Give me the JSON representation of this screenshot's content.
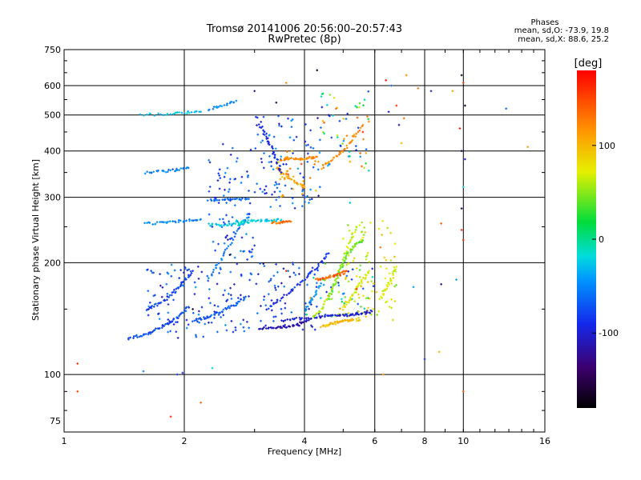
{
  "title": "Tromsø 20141006 20:56:00–20:57:43",
  "subtitle": "RwPretec (8p)",
  "phase_stats": {
    "heading": "Phases",
    "line1": "mean, sd,O: -73.9, 19.8",
    "line2": "mean, sd,X:  88.6, 25.2"
  },
  "colorbar": {
    "unit": "[deg]",
    "range": [
      -180,
      180
    ],
    "ticks": [
      100,
      0,
      -100
    ]
  },
  "chart_data": {
    "type": "scatter",
    "title": "Tromsø 20141006 20:56:00–20:57:43",
    "subtitle": "RwPretec (8p)",
    "xlabel": "Frequency [MHz]",
    "ylabel": "Stationary phase Virtual Height [km]",
    "x_scale": "log",
    "y_scale": "log",
    "xlim": [
      1,
      16
    ],
    "ylim": [
      70,
      750
    ],
    "x_ticks": [
      1,
      2,
      4,
      6,
      8,
      10,
      16
    ],
    "y_ticks": [
      75,
      100,
      200,
      300,
      400,
      500,
      600,
      750
    ],
    "grid": true,
    "color_variable": "phase [deg]",
    "traces": [
      {
        "f": [
          1.45,
          1.55,
          1.65,
          1.75,
          1.85,
          1.95,
          2.05
        ],
        "h": [
          125,
          127,
          130,
          134,
          138,
          144,
          152
        ],
        "phase": -75
      },
      {
        "f": [
          1.6,
          1.7,
          1.8,
          1.9,
          2.0,
          2.1
        ],
        "h": [
          150,
          154,
          160,
          168,
          178,
          190
        ],
        "phase": -85
      },
      {
        "f": [
          2.1,
          2.25,
          2.4,
          2.55,
          2.7,
          2.85
        ],
        "h": [
          140,
          142,
          146,
          150,
          155,
          162
        ],
        "phase": -70
      },
      {
        "f": [
          2.3,
          2.45,
          2.6,
          2.75,
          2.9
        ],
        "h": [
          180,
          200,
          225,
          250,
          265
        ],
        "phase": -60
      },
      {
        "f": [
          3.1,
          3.3,
          3.5,
          3.7,
          3.9,
          4.1
        ],
        "h": [
          133,
          133,
          134,
          135,
          137,
          140
        ],
        "phase": -110
      },
      {
        "f": [
          3.2,
          3.5,
          3.8,
          4.1,
          4.4,
          4.6
        ],
        "h": [
          150,
          160,
          172,
          185,
          200,
          212
        ],
        "phase": -85
      },
      {
        "f": [
          3.5,
          3.8,
          4.1,
          4.4,
          4.7,
          5.0,
          5.3,
          5.6,
          5.9
        ],
        "h": [
          140,
          141,
          142,
          143,
          144,
          144,
          145,
          146,
          148
        ],
        "phase": -100
      },
      {
        "f": [
          4.2,
          4.4,
          4.6,
          4.8,
          5.0,
          5.2,
          5.4
        ],
        "h": [
          142,
          150,
          162,
          180,
          205,
          230,
          250
        ],
        "phase": 60
      },
      {
        "f": [
          4.4,
          4.6,
          4.8,
          5.0,
          5.2,
          5.5
        ],
        "h": [
          135,
          136,
          138,
          139,
          140,
          140
        ],
        "phase": 95
      },
      {
        "f": [
          3.4,
          3.6,
          3.8,
          4.0
        ],
        "h": [
          360,
          345,
          330,
          320
        ],
        "phase": 110
      },
      {
        "f": [
          3.5,
          3.7,
          3.9,
          4.1,
          4.3
        ],
        "h": [
          380,
          380,
          381,
          383,
          386
        ],
        "phase": 120
      },
      {
        "f": [
          4.4,
          4.7,
          5.0,
          5.3,
          5.6
        ],
        "h": [
          360,
          380,
          400,
          430,
          470
        ],
        "phase": 120
      },
      {
        "f": [
          2.3,
          2.5,
          2.7,
          2.9
        ],
        "h": [
          253,
          253,
          254,
          256
        ],
        "phase": -20
      },
      {
        "f": [
          2.3,
          2.5,
          2.7,
          2.9
        ],
        "h": [
          294,
          295,
          296,
          297
        ],
        "phase": -60
      },
      {
        "f": [
          2.7,
          2.9,
          3.1,
          3.3,
          3.5
        ],
        "h": [
          258,
          259,
          260,
          260,
          261
        ],
        "phase": -20
      },
      {
        "f": [
          3.3,
          3.5,
          3.7
        ],
        "h": [
          256,
          257,
          258
        ],
        "phase": 130
      },
      {
        "f": [
          1.6,
          1.75,
          1.9,
          2.05,
          2.2
        ],
        "h": [
          255,
          256,
          258,
          260,
          262
        ],
        "phase": -50
      },
      {
        "f": [
          1.6,
          1.75,
          1.9,
          2.05
        ],
        "h": [
          350,
          352,
          356,
          360
        ],
        "phase": -55
      },
      {
        "f": [
          1.55,
          1.8,
          2.0,
          2.2
        ],
        "h": [
          500,
          503,
          507,
          510
        ],
        "phase": -30
      },
      {
        "f": [
          2.3,
          2.5,
          2.7
        ],
        "h": [
          518,
          530,
          546
        ],
        "phase": -50
      },
      {
        "f": [
          3.1,
          3.2,
          3.3,
          3.4,
          3.5
        ],
        "h": [
          470,
          440,
          410,
          380,
          350
        ],
        "phase": -90
      },
      {
        "f": [
          4.6,
          4.8,
          5.0,
          5.2,
          5.4,
          5.6
        ],
        "h": [
          160,
          180,
          200,
          215,
          225,
          230
        ],
        "phase": 40
      },
      {
        "f": [
          5.0,
          5.2,
          5.4,
          5.6,
          5.8
        ],
        "h": [
          150,
          160,
          170,
          180,
          190
        ],
        "phase": 75
      },
      {
        "f": [
          6.2,
          6.4,
          6.6,
          6.8
        ],
        "h": [
          160,
          170,
          180,
          195
        ],
        "phase": 70
      },
      {
        "f": [
          4.3,
          4.5,
          4.7,
          4.9,
          5.1
        ],
        "h": [
          180,
          182,
          184,
          186,
          190
        ],
        "phase": 140
      },
      {
        "f": [
          4.0,
          4.2,
          4.4
        ],
        "h": [
          148,
          160,
          176
        ],
        "phase": -45
      }
    ],
    "scatter": [
      {
        "f": 1.08,
        "h": 107,
        "phase": 160
      },
      {
        "f": 1.08,
        "h": 90,
        "phase": 150
      },
      {
        "f": 1.85,
        "h": 77,
        "phase": 160
      },
      {
        "f": 1.92,
        "h": 100,
        "phase": -80
      },
      {
        "f": 1.98,
        "h": 101,
        "phase": -80
      },
      {
        "f": 2.35,
        "h": 104,
        "phase": -20
      },
      {
        "f": 2.2,
        "h": 84,
        "phase": 140
      },
      {
        "f": 1.58,
        "h": 102,
        "phase": -50
      },
      {
        "f": 2.1,
        "h": 150,
        "phase": -160
      },
      {
        "f": 2.6,
        "h": 210,
        "phase": -160
      },
      {
        "f": 3.6,
        "h": 190,
        "phase": 160
      },
      {
        "f": 5.4,
        "h": 170,
        "phase": 160
      },
      {
        "f": 5.2,
        "h": 290,
        "phase": -30
      },
      {
        "f": 4.6,
        "h": 500,
        "phase": -120
      },
      {
        "f": 4.8,
        "h": 520,
        "phase": 140
      },
      {
        "f": 5.6,
        "h": 450,
        "phase": 160
      },
      {
        "f": 5.8,
        "h": 480,
        "phase": 120
      },
      {
        "f": 4.3,
        "h": 660,
        "phase": -160
      },
      {
        "f": 3.6,
        "h": 610,
        "phase": 120
      },
      {
        "f": 3.4,
        "h": 540,
        "phase": -150
      },
      {
        "f": 3.0,
        "h": 580,
        "phase": -120
      },
      {
        "f": 6.4,
        "h": 620,
        "phase": 170
      },
      {
        "f": 6.5,
        "h": 510,
        "phase": -100
      },
      {
        "f": 6.6,
        "h": 600,
        "phase": -60
      },
      {
        "f": 6.8,
        "h": 530,
        "phase": 160
      },
      {
        "f": 6.9,
        "h": 470,
        "phase": -110
      },
      {
        "f": 7.0,
        "h": 420,
        "phase": 100
      },
      {
        "f": 7.1,
        "h": 490,
        "phase": 130
      },
      {
        "f": 7.2,
        "h": 640,
        "phase": 120
      },
      {
        "f": 7.7,
        "h": 590,
        "phase": 130
      },
      {
        "f": 8.3,
        "h": 580,
        "phase": -100
      },
      {
        "f": 9.4,
        "h": 580,
        "phase": 110
      },
      {
        "f": 9.9,
        "h": 640,
        "phase": -160
      },
      {
        "f": 10.0,
        "h": 610,
        "phase": 150
      },
      {
        "f": 9.8,
        "h": 460,
        "phase": 170
      },
      {
        "f": 9.9,
        "h": 400,
        "phase": -150
      },
      {
        "f": 9.9,
        "h": 245,
        "phase": 160
      },
      {
        "f": 9.9,
        "h": 280,
        "phase": -140
      },
      {
        "f": 10.0,
        "h": 320,
        "phase": -20
      },
      {
        "f": 10.0,
        "h": 230,
        "phase": 160
      },
      {
        "f": 9.6,
        "h": 180,
        "phase": -40
      },
      {
        "f": 10.1,
        "h": 380,
        "phase": -100
      },
      {
        "f": 10.1,
        "h": 530,
        "phase": -160
      },
      {
        "f": 8.8,
        "h": 175,
        "phase": -130
      },
      {
        "f": 8.0,
        "h": 110,
        "phase": -100
      },
      {
        "f": 8.7,
        "h": 115,
        "phase": 100
      },
      {
        "f": 8.8,
        "h": 255,
        "phase": 140
      },
      {
        "f": 7.5,
        "h": 172,
        "phase": -40
      },
      {
        "f": 6.2,
        "h": 220,
        "phase": 130
      },
      {
        "f": 6.3,
        "h": 100,
        "phase": 120
      },
      {
        "f": 10.0,
        "h": 90,
        "phase": 140
      },
      {
        "f": 12.8,
        "h": 520,
        "phase": -60
      },
      {
        "f": 14.5,
        "h": 410,
        "phase": 110
      }
    ],
    "noise_regions": [
      {
        "f": [
          1.6,
          3.0
        ],
        "h": [
          125,
          200
        ],
        "phase": [
          -110,
          -40
        ]
      },
      {
        "f": [
          2.3,
          3.0
        ],
        "h": [
          200,
          420
        ],
        "phase": [
          -100,
          -40
        ]
      },
      {
        "f": [
          3.0,
          4.3
        ],
        "h": [
          132,
          200
        ],
        "phase": [
          -120,
          -50
        ]
      },
      {
        "f": [
          3.0,
          4.5
        ],
        "h": [
          280,
          500
        ],
        "phase": [
          -110,
          -40
        ]
      },
      {
        "f": [
          3.4,
          4.4
        ],
        "h": [
          300,
          400
        ],
        "phase": [
          80,
          150
        ]
      },
      {
        "f": [
          4.0,
          6.0
        ],
        "h": [
          140,
          200
        ],
        "phase": [
          -110,
          120
        ]
      },
      {
        "f": [
          4.4,
          5.8
        ],
        "h": [
          350,
          580
        ],
        "phase": [
          -100,
          150
        ]
      },
      {
        "f": [
          5.0,
          6.8
        ],
        "h": [
          140,
          260
        ],
        "phase": [
          40,
          100
        ]
      }
    ]
  }
}
